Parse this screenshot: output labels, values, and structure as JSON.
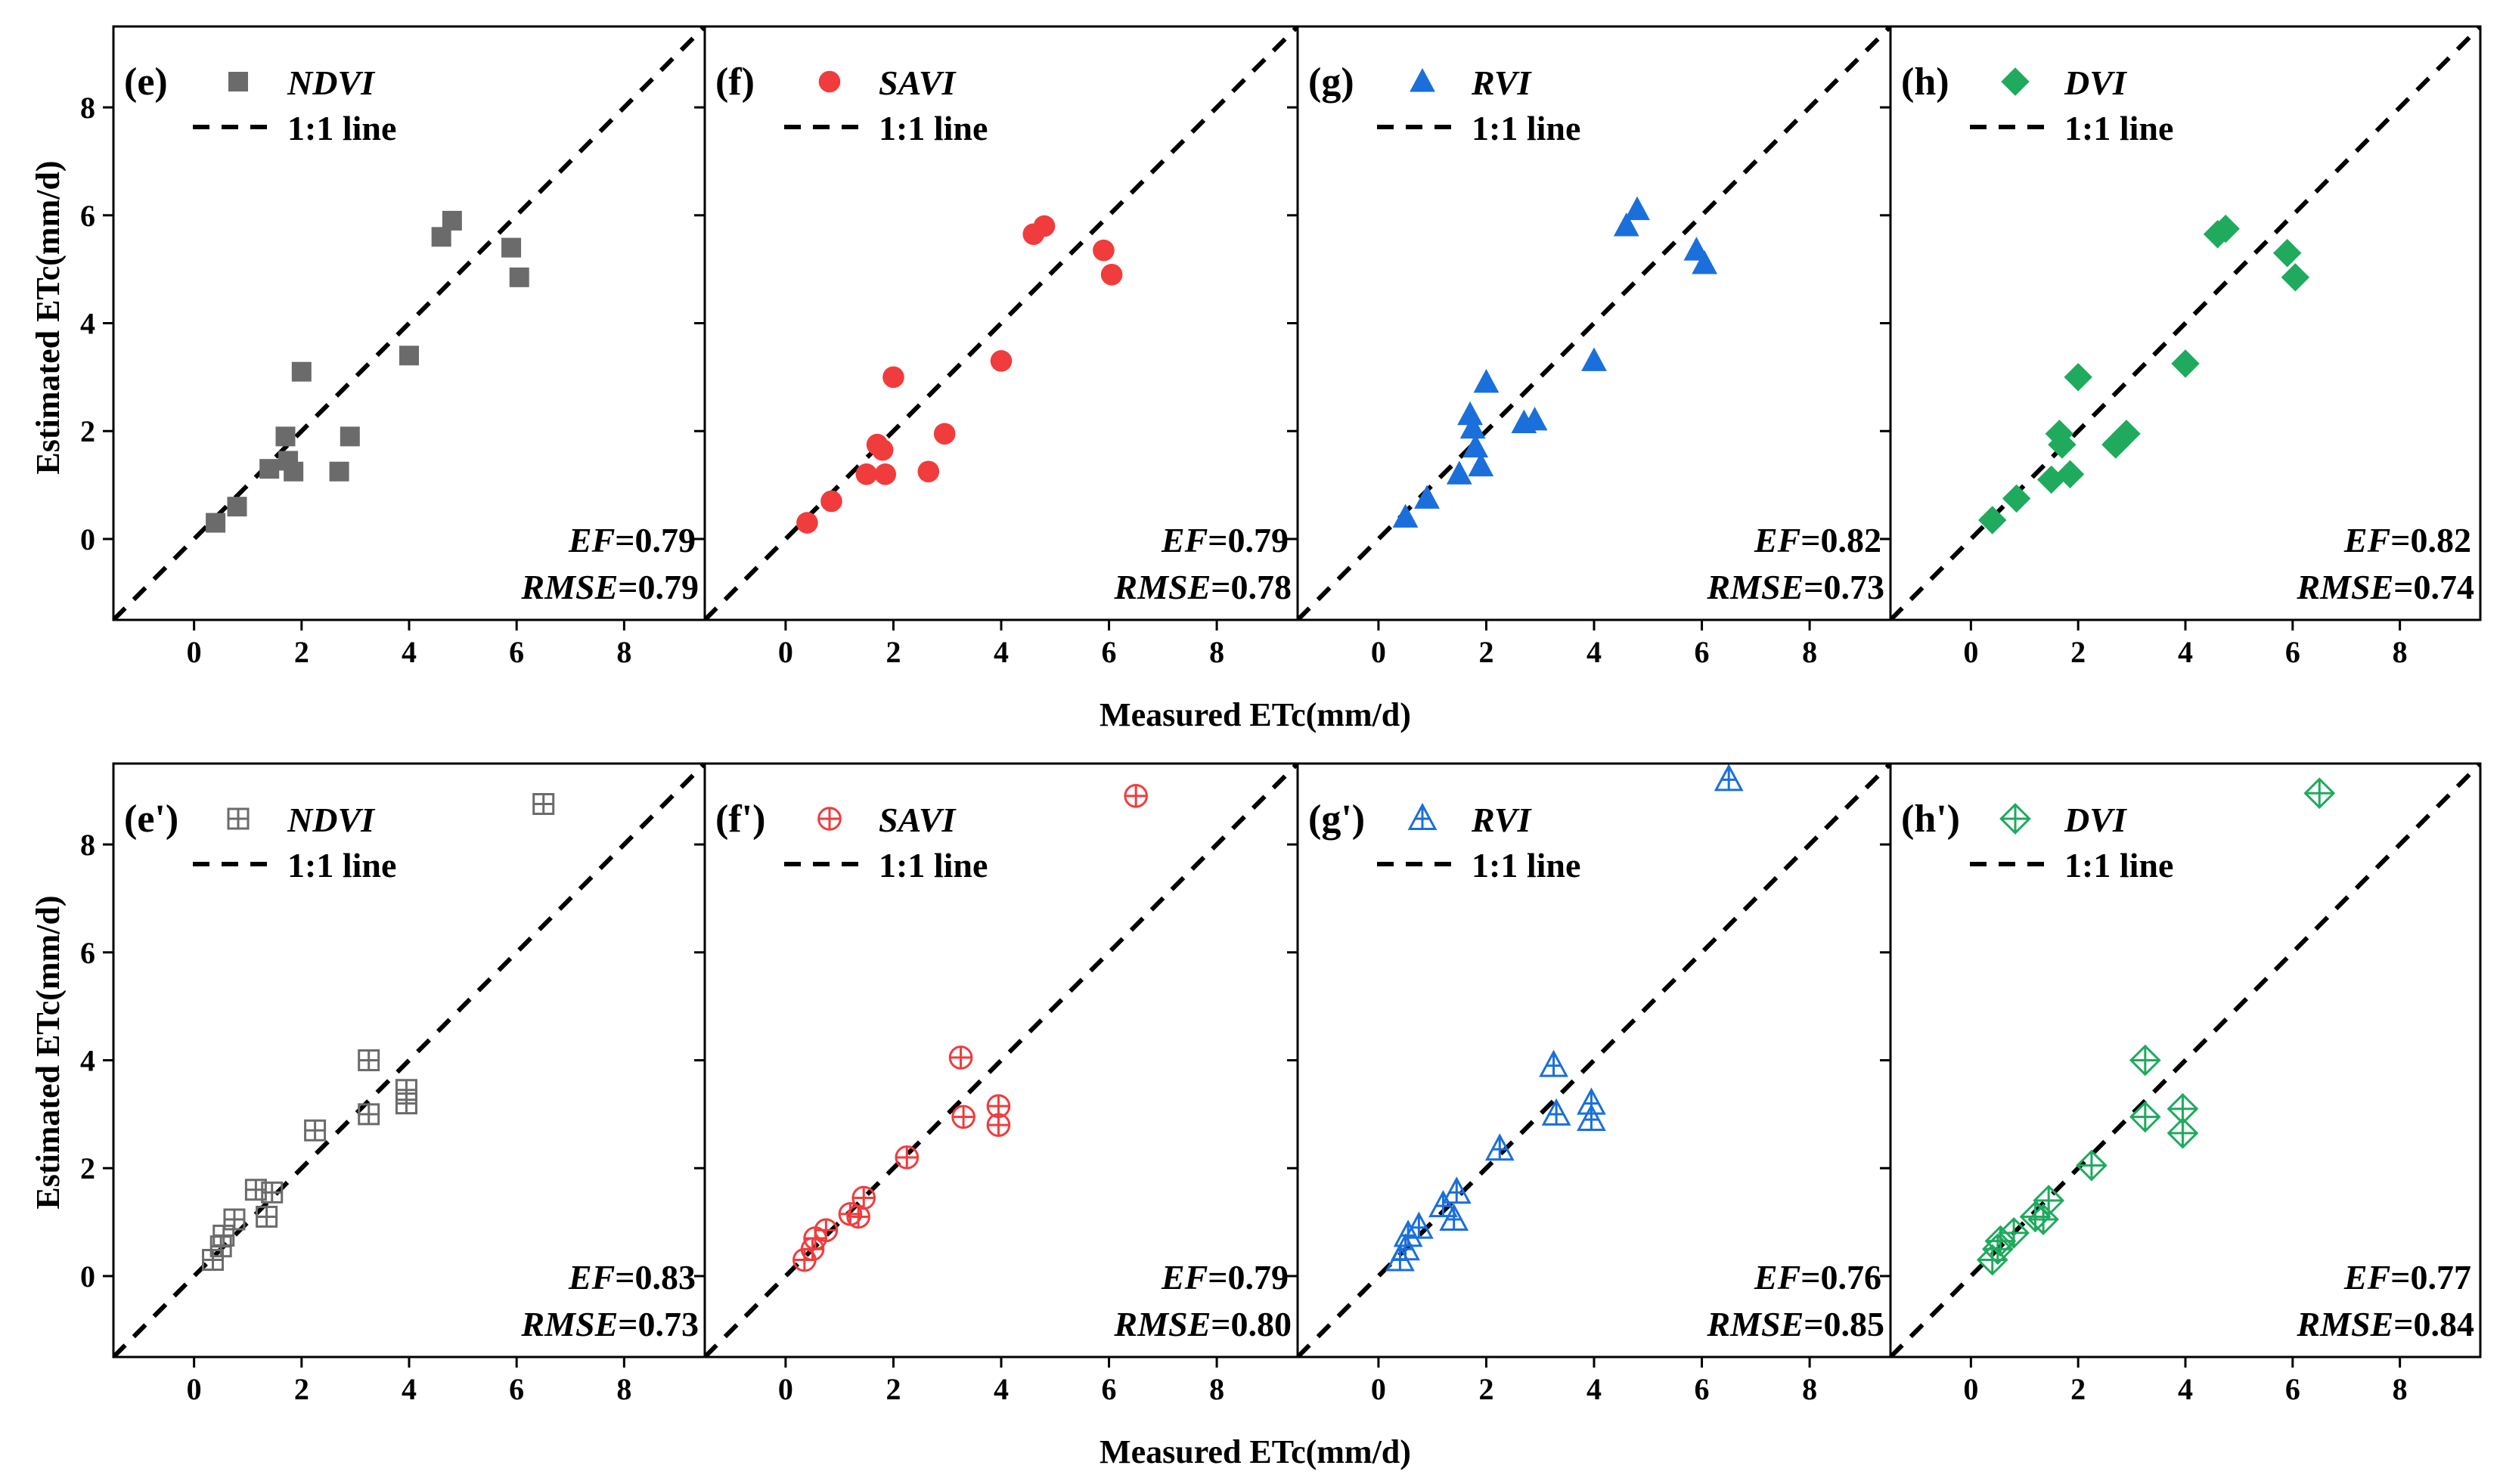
{
  "figure": {
    "row_xlabel": "Measured ETc(mm/d)",
    "row_ylabel": "Estimated ETc(mm/d)"
  },
  "chart_data": [
    {
      "type": "scatter",
      "row": 0,
      "col": 0,
      "panel_label": "(e)",
      "series_name": "NDVI",
      "line_name": "1:1 line",
      "marker": "square",
      "color": "#6b6b6b",
      "stats": {
        "EF": "0.79",
        "RMSE": "0.79"
      },
      "xlim": [
        -1.5,
        9.5
      ],
      "ylim": [
        -1.5,
        9.5
      ],
      "xticks": [
        0,
        2,
        4,
        6,
        8
      ],
      "yticks": [
        0,
        2,
        4,
        6,
        8
      ],
      "points": [
        [
          0.4,
          0.3
        ],
        [
          0.8,
          0.6
        ],
        [
          1.4,
          1.3
        ],
        [
          1.7,
          1.9
        ],
        [
          1.75,
          1.45
        ],
        [
          1.85,
          1.25
        ],
        [
          2.0,
          3.1
        ],
        [
          2.7,
          1.25
        ],
        [
          2.9,
          1.9
        ],
        [
          4.0,
          3.4
        ],
        [
          4.6,
          5.6
        ],
        [
          4.8,
          5.9
        ],
        [
          5.9,
          5.4
        ],
        [
          6.05,
          4.85
        ]
      ]
    },
    {
      "type": "scatter",
      "row": 0,
      "col": 1,
      "panel_label": "(f)",
      "series_name": "SAVI",
      "line_name": "1:1 line",
      "marker": "circle",
      "color": "#f03c3c",
      "stats": {
        "EF": "0.79",
        "RMSE": "0.78"
      },
      "xlim": [
        -1.5,
        9.5
      ],
      "ylim": [
        -1.5,
        9.5
      ],
      "xticks": [
        0,
        2,
        4,
        6,
        8
      ],
      "yticks": [
        0,
        2,
        4,
        6,
        8
      ],
      "points": [
        [
          0.4,
          0.3
        ],
        [
          0.85,
          0.7
        ],
        [
          1.5,
          1.2
        ],
        [
          1.7,
          1.75
        ],
        [
          1.8,
          1.65
        ],
        [
          1.85,
          1.2
        ],
        [
          2.0,
          3.0
        ],
        [
          2.65,
          1.25
        ],
        [
          2.95,
          1.95
        ],
        [
          4.0,
          3.3
        ],
        [
          4.6,
          5.65
        ],
        [
          4.8,
          5.8
        ],
        [
          5.9,
          5.35
        ],
        [
          6.05,
          4.9
        ]
      ]
    },
    {
      "type": "scatter",
      "row": 0,
      "col": 2,
      "panel_label": "(g)",
      "series_name": "RVI",
      "line_name": "1:1 line",
      "marker": "triangle",
      "color": "#1a6fdb",
      "stats": {
        "EF": "0.82",
        "RMSE": "0.73"
      },
      "xlim": [
        -1.5,
        9.5
      ],
      "ylim": [
        -1.5,
        9.5
      ],
      "xticks": [
        0,
        2,
        4,
        6,
        8
      ],
      "yticks": [
        0,
        2,
        4,
        6,
        8
      ],
      "points": [
        [
          0.5,
          0.4
        ],
        [
          0.9,
          0.75
        ],
        [
          1.5,
          1.2
        ],
        [
          1.7,
          2.3
        ],
        [
          1.75,
          2.05
        ],
        [
          1.8,
          1.7
        ],
        [
          1.9,
          1.35
        ],
        [
          2.0,
          2.9
        ],
        [
          2.7,
          2.15
        ],
        [
          2.9,
          2.2
        ],
        [
          4.0,
          3.3
        ],
        [
          4.6,
          5.8
        ],
        [
          4.8,
          6.1
        ],
        [
          5.9,
          5.35
        ],
        [
          6.05,
          5.1
        ]
      ]
    },
    {
      "type": "scatter",
      "row": 0,
      "col": 3,
      "panel_label": "(h)",
      "series_name": "DVI",
      "line_name": "1:1 line",
      "marker": "diamond",
      "color": "#1faa5e",
      "stats": {
        "EF": "0.82",
        "RMSE": "0.74"
      },
      "xlim": [
        -1.5,
        9.5
      ],
      "ylim": [
        -1.5,
        9.5
      ],
      "xticks": [
        0,
        2,
        4,
        6,
        8
      ],
      "yticks": [
        0,
        2,
        4,
        6,
        8
      ],
      "points": [
        [
          0.4,
          0.35
        ],
        [
          0.85,
          0.75
        ],
        [
          1.5,
          1.1
        ],
        [
          1.65,
          1.95
        ],
        [
          1.7,
          1.75
        ],
        [
          1.85,
          1.2
        ],
        [
          2.0,
          3.0
        ],
        [
          2.7,
          1.75
        ],
        [
          2.9,
          1.95
        ],
        [
          4.0,
          3.25
        ],
        [
          4.6,
          5.65
        ],
        [
          4.75,
          5.75
        ],
        [
          5.9,
          5.3
        ],
        [
          6.05,
          4.85
        ]
      ]
    },
    {
      "type": "scatter",
      "row": 1,
      "col": 0,
      "panel_label": "(e')",
      "series_name": "NDVI",
      "line_name": "1:1 line",
      "marker": "square-cross",
      "color": "#6b6b6b",
      "stats": {
        "EF": "0.83",
        "RMSE": "0.73"
      },
      "xlim": [
        -1.5,
        9.5
      ],
      "ylim": [
        -1.5,
        9.5
      ],
      "xticks": [
        0,
        2,
        4,
        6,
        8
      ],
      "yticks": [
        0,
        2,
        4,
        6,
        8
      ],
      "points": [
        [
          0.35,
          0.3
        ],
        [
          0.5,
          0.55
        ],
        [
          0.55,
          0.75
        ],
        [
          0.75,
          1.05
        ],
        [
          1.15,
          1.6
        ],
        [
          1.35,
          1.1
        ],
        [
          1.45,
          1.55
        ],
        [
          2.25,
          2.7
        ],
        [
          3.25,
          4.0
        ],
        [
          3.25,
          3.0
        ],
        [
          3.95,
          3.45
        ],
        [
          3.95,
          3.2
        ],
        [
          6.5,
          8.75
        ]
      ]
    },
    {
      "type": "scatter",
      "row": 1,
      "col": 1,
      "panel_label": "(f')",
      "series_name": "SAVI",
      "line_name": "1:1 line",
      "marker": "circle-cross",
      "color": "#f03c3c",
      "stats": {
        "EF": "0.79",
        "RMSE": "0.80"
      },
      "xlim": [
        -1.5,
        9.5
      ],
      "ylim": [
        -1.5,
        9.5
      ],
      "xticks": [
        0,
        2,
        4,
        6,
        8
      ],
      "yticks": [
        0,
        2,
        4,
        6,
        8
      ],
      "points": [
        [
          0.35,
          0.3
        ],
        [
          0.5,
          0.5
        ],
        [
          0.55,
          0.7
        ],
        [
          0.75,
          0.85
        ],
        [
          1.2,
          1.15
        ],
        [
          1.35,
          1.1
        ],
        [
          1.45,
          1.45
        ],
        [
          2.25,
          2.2
        ],
        [
          3.25,
          4.05
        ],
        [
          3.3,
          2.95
        ],
        [
          3.95,
          3.15
        ],
        [
          3.95,
          2.8
        ],
        [
          6.5,
          8.9
        ]
      ]
    },
    {
      "type": "scatter",
      "row": 1,
      "col": 2,
      "panel_label": "(g')",
      "series_name": "RVI",
      "line_name": "1:1 line",
      "marker": "triangle-cross",
      "color": "#1a6fdb",
      "stats": {
        "EF": "0.76",
        "RMSE": "0.85"
      },
      "xlim": [
        -1.5,
        9.5
      ],
      "ylim": [
        -1.5,
        9.5
      ],
      "xticks": [
        0,
        2,
        4,
        6,
        8
      ],
      "yticks": [
        0,
        2,
        4,
        6,
        8
      ],
      "points": [
        [
          0.4,
          0.3
        ],
        [
          0.5,
          0.5
        ],
        [
          0.55,
          0.75
        ],
        [
          0.75,
          0.9
        ],
        [
          1.2,
          1.3
        ],
        [
          1.4,
          1.05
        ],
        [
          1.45,
          1.55
        ],
        [
          2.25,
          2.35
        ],
        [
          3.25,
          3.9
        ],
        [
          3.3,
          3.0
        ],
        [
          3.95,
          3.2
        ],
        [
          3.95,
          2.9
        ],
        [
          6.5,
          9.2
        ]
      ]
    },
    {
      "type": "scatter",
      "row": 1,
      "col": 3,
      "panel_label": "(h')",
      "series_name": "DVI",
      "line_name": "1:1 line",
      "marker": "diamond-cross",
      "color": "#1faa5e",
      "stats": {
        "EF": "0.77",
        "RMSE": "0.84"
      },
      "xlim": [
        -1.5,
        9.5
      ],
      "ylim": [
        -1.5,
        9.5
      ],
      "xticks": [
        0,
        2,
        4,
        6,
        8
      ],
      "yticks": [
        0,
        2,
        4,
        6,
        8
      ],
      "points": [
        [
          0.4,
          0.3
        ],
        [
          0.5,
          0.5
        ],
        [
          0.55,
          0.65
        ],
        [
          0.8,
          0.8
        ],
        [
          1.2,
          1.1
        ],
        [
          1.35,
          1.05
        ],
        [
          1.45,
          1.4
        ],
        [
          2.25,
          2.05
        ],
        [
          3.25,
          4.0
        ],
        [
          3.25,
          2.95
        ],
        [
          3.95,
          3.1
        ],
        [
          3.95,
          2.65
        ],
        [
          6.5,
          8.95
        ]
      ]
    }
  ]
}
